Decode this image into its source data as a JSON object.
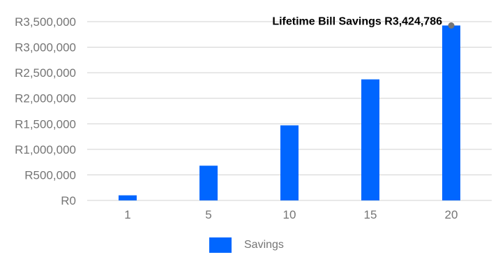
{
  "chart_data": {
    "type": "bar",
    "categories": [
      "1",
      "5",
      "10",
      "15",
      "20"
    ],
    "series": [
      {
        "name": "Savings",
        "values": [
          100000,
          680000,
          1470000,
          2370000,
          3424786
        ]
      }
    ],
    "y_ticks": [
      "R0",
      "R500,000",
      "R1,000,000",
      "R1,500,000",
      "R2,000,000",
      "R2,500,000",
      "R3,000,000",
      "R3,500,000"
    ],
    "ylim": [
      0,
      3500000
    ],
    "grid": true,
    "legend_position": "bottom",
    "annotation": "Lifetime Bill Savings R3,424,786",
    "colors": {
      "bar": "#0066ff",
      "grid": "#d0d0d0",
      "marker": "#757575"
    }
  }
}
